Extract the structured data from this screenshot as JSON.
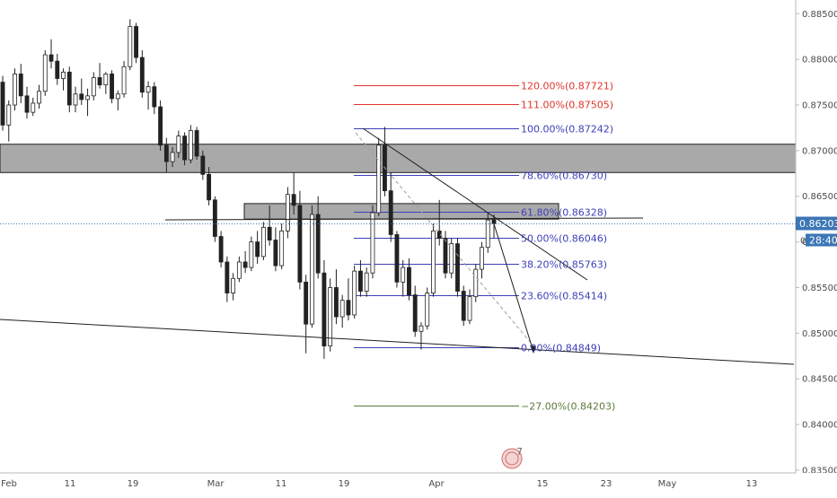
{
  "chart_data": {
    "type": "candlestick",
    "y_axis": {
      "position": "right",
      "range": [
        0.8347,
        0.8865
      ],
      "ticks": [
        "0.83500",
        "0.84000",
        "0.84500",
        "0.85000",
        "0.85500",
        "0.86000",
        "0.86500",
        "0.87000",
        "0.87500",
        "0.88000",
        "0.88500"
      ]
    },
    "x_axis": {
      "labels": [
        "Feb",
        "11",
        "19",
        "Mar",
        "11",
        "19",
        "Apr",
        "15",
        "23",
        "May",
        "13"
      ]
    },
    "last_price": {
      "label": "0.86203",
      "value": 0.86203,
      "color": "#3b76b5"
    },
    "countdown": {
      "label": "28:40"
    },
    "fibonacci": [
      {
        "label": "120.00%(0.87721)",
        "value": 0.87721,
        "color": "#e0352b"
      },
      {
        "label": "111.00%(0.87505)",
        "value": 0.87505,
        "color": "#e0352b"
      },
      {
        "label": "100.00%(0.87242)",
        "value": 0.87242,
        "color": "#3e3eb8"
      },
      {
        "label": "78.60%(0.86730)",
        "value": 0.8673,
        "color": "#3e3eb8"
      },
      {
        "label": "61.80%(0.86328)",
        "value": 0.86328,
        "color": "#3e3eb8"
      },
      {
        "label": "50.00%(0.86046)",
        "value": 0.86046,
        "color": "#3e3eb8"
      },
      {
        "label": "38.20%(0.85763)",
        "value": 0.85763,
        "color": "#3e3eb8"
      },
      {
        "label": "23.60%(0.85414)",
        "value": 0.85414,
        "color": "#3e3eb8"
      },
      {
        "label": "0.00%(0.84849)",
        "value": 0.84849,
        "color": "#3e3eb8"
      },
      {
        "label": "−27.00%(0.84203)",
        "value": 0.84203,
        "color": "#5c7a3a"
      }
    ],
    "zones": [
      {
        "name": "resistance-zone",
        "from": 0.8676,
        "to": 0.8707
      },
      {
        "name": "supply-zone",
        "from": 0.8625,
        "to": 0.8642
      }
    ],
    "ohlc": [
      [
        0.8775,
        0.8782,
        0.8722,
        0.8728
      ],
      [
        0.8728,
        0.8755,
        0.871,
        0.875
      ],
      [
        0.875,
        0.879,
        0.8744,
        0.8784
      ],
      [
        0.8784,
        0.8795,
        0.8752,
        0.876
      ],
      [
        0.876,
        0.877,
        0.8735,
        0.8742
      ],
      [
        0.8742,
        0.8758,
        0.8738,
        0.8752
      ],
      [
        0.8752,
        0.8772,
        0.8746,
        0.8765
      ],
      [
        0.8765,
        0.881,
        0.876,
        0.8805
      ],
      [
        0.8805,
        0.8822,
        0.879,
        0.8798
      ],
      [
        0.8798,
        0.8806,
        0.8772,
        0.8779
      ],
      [
        0.8779,
        0.879,
        0.8766,
        0.8786
      ],
      [
        0.8786,
        0.8792,
        0.8742,
        0.875
      ],
      [
        0.875,
        0.877,
        0.8742,
        0.8762
      ],
      [
        0.8762,
        0.8779,
        0.875,
        0.8756
      ],
      [
        0.8756,
        0.8768,
        0.8738,
        0.876
      ],
      [
        0.876,
        0.8786,
        0.8755,
        0.878
      ],
      [
        0.878,
        0.8796,
        0.8768,
        0.8772
      ],
      [
        0.8772,
        0.8786,
        0.8762,
        0.8784
      ],
      [
        0.8784,
        0.8788,
        0.8752,
        0.8757
      ],
      [
        0.8757,
        0.8766,
        0.8744,
        0.8762
      ],
      [
        0.8762,
        0.8798,
        0.8758,
        0.8792
      ],
      [
        0.8792,
        0.8844,
        0.8788,
        0.8836
      ],
      [
        0.8836,
        0.884,
        0.8796,
        0.8802
      ],
      [
        0.8802,
        0.881,
        0.8758,
        0.8764
      ],
      [
        0.8764,
        0.8776,
        0.8745,
        0.877
      ],
      [
        0.877,
        0.8775,
        0.874,
        0.8748
      ],
      [
        0.8748,
        0.8755,
        0.87,
        0.8706
      ],
      [
        0.8706,
        0.8714,
        0.8676,
        0.8688
      ],
      [
        0.8688,
        0.8704,
        0.8682,
        0.8698
      ],
      [
        0.8698,
        0.8722,
        0.8692,
        0.8716
      ],
      [
        0.8716,
        0.872,
        0.8684,
        0.869
      ],
      [
        0.869,
        0.8728,
        0.8686,
        0.8722
      ],
      [
        0.8722,
        0.8726,
        0.869,
        0.8694
      ],
      [
        0.8694,
        0.87,
        0.8668,
        0.8674
      ],
      [
        0.8674,
        0.8682,
        0.864,
        0.8646
      ],
      [
        0.8646,
        0.865,
        0.86,
        0.8606
      ],
      [
        0.8606,
        0.8612,
        0.8572,
        0.8578
      ],
      [
        0.8578,
        0.8584,
        0.8534,
        0.8544
      ],
      [
        0.8544,
        0.8566,
        0.8536,
        0.856
      ],
      [
        0.856,
        0.8584,
        0.8556,
        0.8578
      ],
      [
        0.8578,
        0.859,
        0.8566,
        0.8572
      ],
      [
        0.8572,
        0.8606,
        0.8568,
        0.86
      ],
      [
        0.86,
        0.8612,
        0.8576,
        0.8584
      ],
      [
        0.8584,
        0.8622,
        0.858,
        0.8616
      ],
      [
        0.8616,
        0.864,
        0.8596,
        0.8602
      ],
      [
        0.8602,
        0.8616,
        0.8568,
        0.8574
      ],
      [
        0.8574,
        0.862,
        0.857,
        0.8612
      ],
      [
        0.8612,
        0.866,
        0.8604,
        0.8652
      ],
      [
        0.8652,
        0.8676,
        0.863,
        0.864
      ],
      [
        0.864,
        0.8656,
        0.8548,
        0.8556
      ],
      [
        0.8556,
        0.8564,
        0.8478,
        0.851
      ],
      [
        0.851,
        0.864,
        0.8506,
        0.863
      ],
      [
        0.863,
        0.865,
        0.856,
        0.8566
      ],
      [
        0.8566,
        0.858,
        0.8472,
        0.8486
      ],
      [
        0.8486,
        0.856,
        0.848,
        0.855
      ],
      [
        0.855,
        0.857,
        0.851,
        0.8518
      ],
      [
        0.8518,
        0.8542,
        0.8506,
        0.8536
      ],
      [
        0.8536,
        0.856,
        0.8514,
        0.852
      ],
      [
        0.852,
        0.8574,
        0.8516,
        0.8568
      ],
      [
        0.8568,
        0.858,
        0.854,
        0.8546
      ],
      [
        0.8546,
        0.8572,
        0.854,
        0.8566
      ],
      [
        0.8566,
        0.864,
        0.856,
        0.8632
      ],
      [
        0.8632,
        0.8714,
        0.8628,
        0.8706
      ],
      [
        0.8706,
        0.8726,
        0.865,
        0.8656
      ],
      [
        0.8656,
        0.8676,
        0.86,
        0.8608
      ],
      [
        0.8608,
        0.8612,
        0.855,
        0.8556
      ],
      [
        0.8556,
        0.858,
        0.854,
        0.8572
      ],
      [
        0.8572,
        0.8582,
        0.8536,
        0.8542
      ],
      [
        0.8542,
        0.8552,
        0.8496,
        0.8502
      ],
      [
        0.8502,
        0.8512,
        0.8482,
        0.8508
      ],
      [
        0.8508,
        0.855,
        0.8504,
        0.8544
      ],
      [
        0.8544,
        0.862,
        0.854,
        0.8612
      ],
      [
        0.8612,
        0.8646,
        0.8596,
        0.8604
      ],
      [
        0.8604,
        0.8612,
        0.856,
        0.8566
      ],
      [
        0.8566,
        0.8604,
        0.856,
        0.8598
      ],
      [
        0.8598,
        0.8604,
        0.854,
        0.8546
      ],
      [
        0.8546,
        0.8552,
        0.8508,
        0.8514
      ],
      [
        0.8514,
        0.8548,
        0.851,
        0.854
      ],
      [
        0.854,
        0.8576,
        0.8534,
        0.857
      ],
      [
        0.857,
        0.86,
        0.856,
        0.8594
      ],
      [
        0.8594,
        0.8632,
        0.8588,
        0.8624
      ],
      [
        0.8624,
        0.863,
        0.8604,
        0.862
      ]
    ]
  },
  "watermark": {
    "text": "7"
  }
}
